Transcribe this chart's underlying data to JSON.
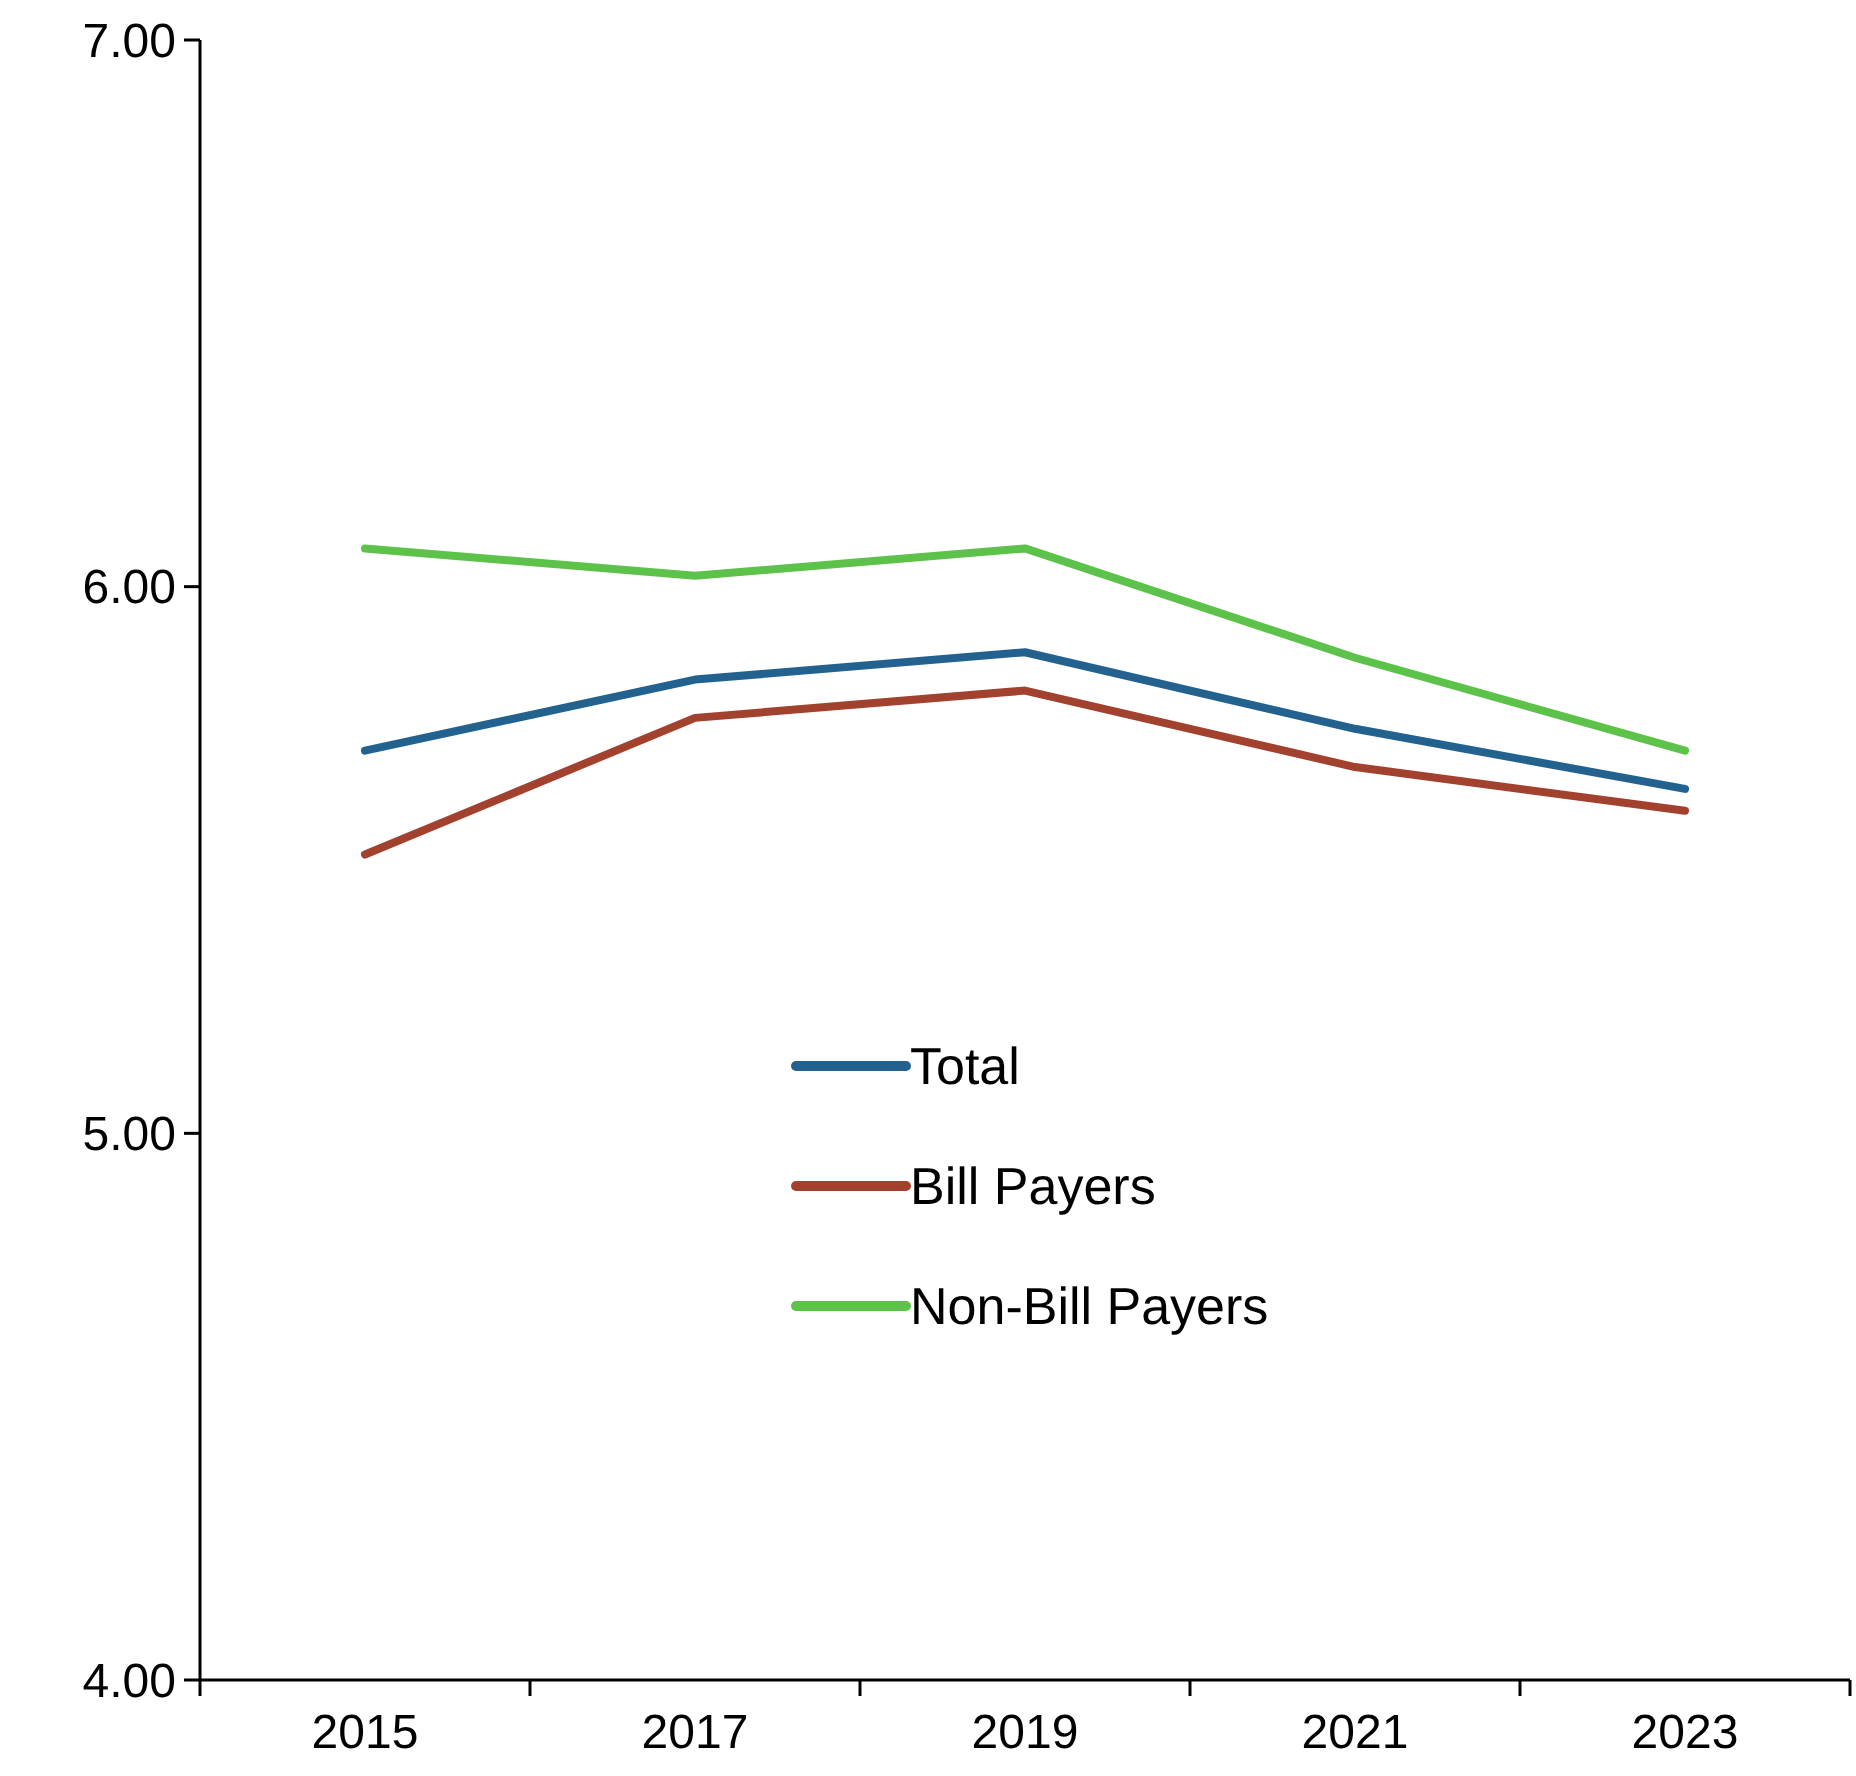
{
  "chart_data": {
    "type": "line",
    "categories": [
      "2015",
      "2017",
      "2019",
      "2021",
      "2023"
    ],
    "series": [
      {
        "name": "Total",
        "color": "#23618e",
        "values": [
          5.7,
          5.83,
          5.88,
          5.74,
          5.63
        ]
      },
      {
        "name": "Bill Payers",
        "color": "#a3412f",
        "values": [
          5.51,
          5.76,
          5.81,
          5.67,
          5.59
        ]
      },
      {
        "name": "Non-Bill Payers",
        "color": "#5cc24a",
        "values": [
          6.07,
          6.02,
          6.07,
          5.87,
          5.7
        ]
      }
    ],
    "ylim": [
      4,
      7
    ],
    "yticks": [
      {
        "value": 4,
        "label": "4.00"
      },
      {
        "value": 5,
        "label": "5.00"
      },
      {
        "value": 6,
        "label": "6.00"
      },
      {
        "value": 7,
        "label": "7.00"
      }
    ],
    "legend": "center",
    "line_style": "solid",
    "marker": "none"
  }
}
